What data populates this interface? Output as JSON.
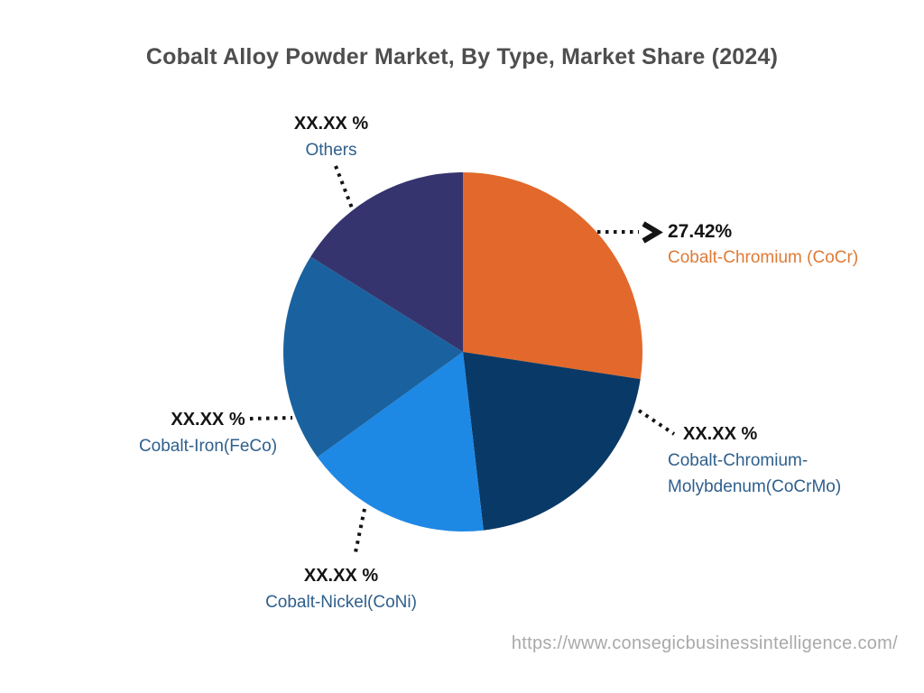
{
  "title": "Cobalt Alloy Powder Market, By Type, Market Share (2024)",
  "footer": {
    "url": "https://www.consegicbusinessintelligence.com/"
  },
  "colors": {
    "background": "#ffffff",
    "title_text": "#4e4e4e",
    "percent_text": "#141414",
    "category_text_blue": "#2e5f8c",
    "category_text_orange": "#df7a35",
    "leader_line": "#141414",
    "footer_text": "#a9a9a9",
    "slice_cocr": "#e2692b",
    "slice_cocrmo": "#093966",
    "slice_coni": "#1e88e5",
    "slice_feco": "#1a629f",
    "slice_others": "#36346f"
  },
  "chart_data": {
    "type": "pie",
    "title": "Cobalt Alloy Powder Market, By Type, Market Share (2024)",
    "legend_position": "none",
    "label_style": "external-callouts-with-dotted-leaders",
    "start_angle_deg": 0,
    "direction": "clockwise",
    "categories": [
      "Cobalt-Chromium (CoCr)",
      "Cobalt-Chromium-Molybdenum(CoCrMo)",
      "Cobalt-Nickel(CoNi)",
      "Cobalt-Iron(FeCo)",
      "Others"
    ],
    "displayed_values": [
      "27.42%",
      "XX.XX %",
      "XX.XX %",
      "XX.XX %",
      "XX.XX %"
    ],
    "note": "Only the CoCr share (27.42%) is disclosed in the figure; remaining shares are masked as XX.XX % and their numeric values below are estimated from arc angles.",
    "segments": [
      {
        "id": "cocr",
        "label": "Cobalt-Chromium (CoCr)",
        "display_value": "27.42%",
        "value": 27.42,
        "color": "#e2692b"
      },
      {
        "id": "cocrmo",
        "label": "Cobalt-Chromium-Molybdenum(CoCrMo)",
        "display_value": "XX.XX %",
        "value": 20.75,
        "color": "#093966"
      },
      {
        "id": "coni",
        "label": "Cobalt-Nickel(CoNi)",
        "display_value": "XX.XX %",
        "value": 16.86,
        "color": "#1e88e5"
      },
      {
        "id": "feco",
        "label": "Cobalt-Iron(FeCo)",
        "display_value": "XX.XX %",
        "value": 18.86,
        "color": "#1a629f"
      },
      {
        "id": "others",
        "label": "Others",
        "display_value": "XX.XX %",
        "value": 16.11,
        "color": "#36346f"
      }
    ]
  },
  "callouts": {
    "others": {
      "pct": "XX.XX %",
      "name": "Others"
    },
    "cocr": {
      "pct": "27.42%",
      "name": "Cobalt-Chromium (CoCr)"
    },
    "cocrmo": {
      "pct": "XX.XX %",
      "name_line1": "Cobalt-Chromium-",
      "name_line2": "Molybdenum(CoCrMo)"
    },
    "feco": {
      "pct": "XX.XX %",
      "name": "Cobalt-Iron(FeCo)"
    },
    "coni": {
      "pct": "XX.XX %",
      "name": "Cobalt-Nickel(CoNi)"
    }
  }
}
